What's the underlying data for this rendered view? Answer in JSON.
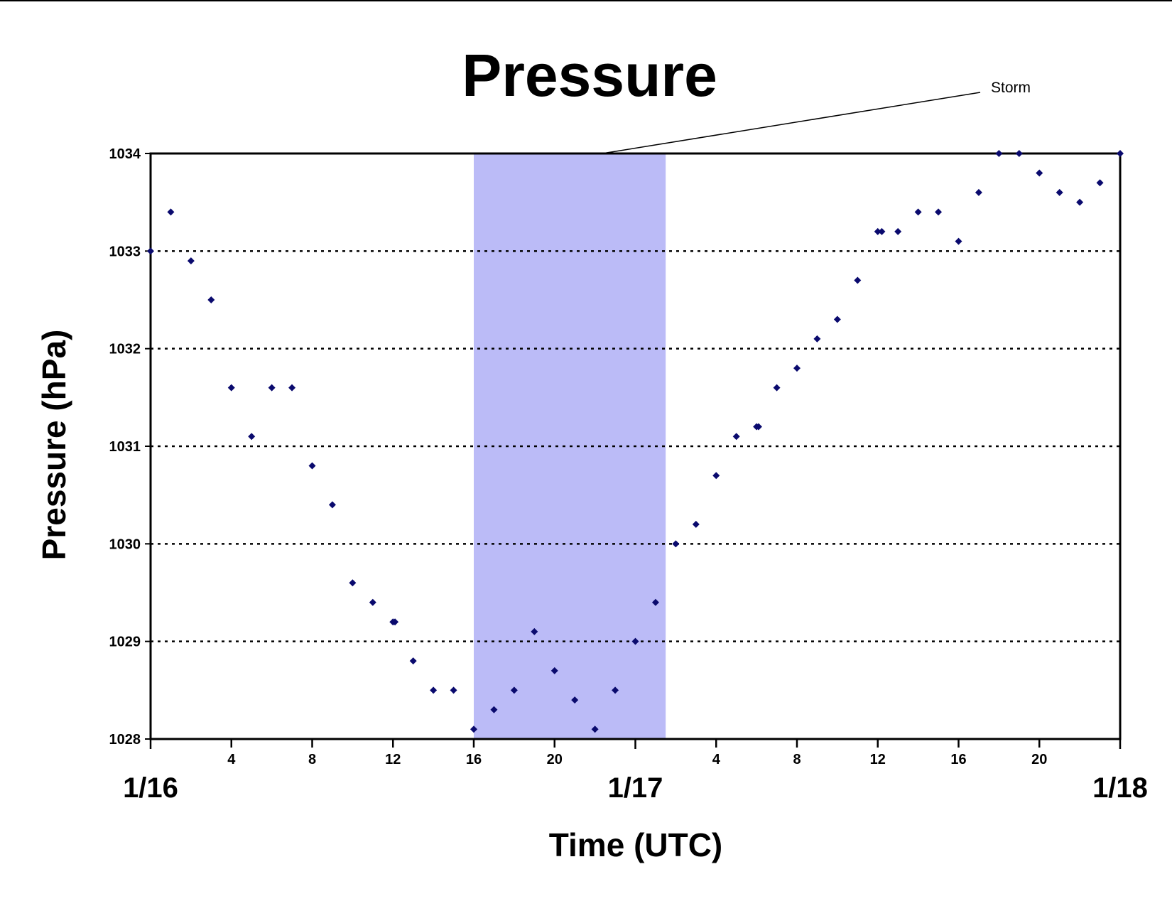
{
  "chart_data": {
    "type": "scatter",
    "title": "Pressure",
    "xlabel": "Time (UTC)",
    "ylabel": "Pressure (hPa)",
    "ylim": [
      1028,
      1034
    ],
    "yticks": [
      "1028",
      "1029",
      "1030",
      "1031",
      "1032",
      "1033",
      "1034"
    ],
    "xlim_hours": [
      0,
      48
    ],
    "hour_ticks": [
      "4",
      "8",
      "12",
      "16",
      "20",
      "4",
      "8",
      "12",
      "16",
      "20"
    ],
    "hour_tick_positions": [
      4,
      8,
      12,
      16,
      20,
      28,
      32,
      36,
      40,
      44
    ],
    "day_labels": [
      {
        "text": "1/16",
        "hour": 0
      },
      {
        "text": "1/17",
        "hour": 24
      },
      {
        "text": "1/18",
        "hour": 48
      }
    ],
    "grid": "dotted horizontal",
    "highlight": {
      "label": "Storm",
      "start_hour": 16,
      "end_hour": 25.5,
      "color": "#bbbbf7"
    },
    "series": [
      {
        "marker": "diamond",
        "color": "#0a0a6e",
        "points": [
          [
            0,
            1033.0
          ],
          [
            1,
            1033.4
          ],
          [
            2,
            1032.9
          ],
          [
            3,
            1032.5
          ],
          [
            4,
            1031.6
          ],
          [
            5,
            1031.1
          ],
          [
            6,
            1031.6
          ],
          [
            7,
            1031.6
          ],
          [
            8,
            1030.8
          ],
          [
            9,
            1030.4
          ],
          [
            10,
            1029.6
          ],
          [
            11,
            1029.4
          ],
          [
            12,
            1029.2
          ],
          [
            12.1,
            1029.2
          ],
          [
            13,
            1028.8
          ],
          [
            14,
            1028.5
          ],
          [
            15,
            1028.5
          ],
          [
            16,
            1028.1
          ],
          [
            17,
            1028.3
          ],
          [
            18,
            1028.5
          ],
          [
            19,
            1029.1
          ],
          [
            20,
            1028.7
          ],
          [
            21,
            1028.4
          ],
          [
            22,
            1028.1
          ],
          [
            23,
            1028.5
          ],
          [
            24,
            1029.0
          ],
          [
            25,
            1029.4
          ],
          [
            26,
            1030.0
          ],
          [
            27,
            1030.2
          ],
          [
            28,
            1030.7
          ],
          [
            29,
            1031.1
          ],
          [
            30,
            1031.2
          ],
          [
            30.1,
            1031.2
          ],
          [
            31,
            1031.6
          ],
          [
            32,
            1031.8
          ],
          [
            33,
            1032.1
          ],
          [
            34,
            1032.3
          ],
          [
            35,
            1032.7
          ],
          [
            36,
            1033.2
          ],
          [
            36.2,
            1033.2
          ],
          [
            37,
            1033.2
          ],
          [
            38,
            1033.4
          ],
          [
            39,
            1033.4
          ],
          [
            40,
            1033.1
          ],
          [
            41,
            1033.6
          ],
          [
            42,
            1034.0
          ],
          [
            43,
            1034.0
          ],
          [
            44,
            1033.8
          ],
          [
            45,
            1033.6
          ],
          [
            46,
            1033.5
          ],
          [
            47,
            1033.7
          ],
          [
            48,
            1034.0
          ]
        ]
      }
    ]
  }
}
